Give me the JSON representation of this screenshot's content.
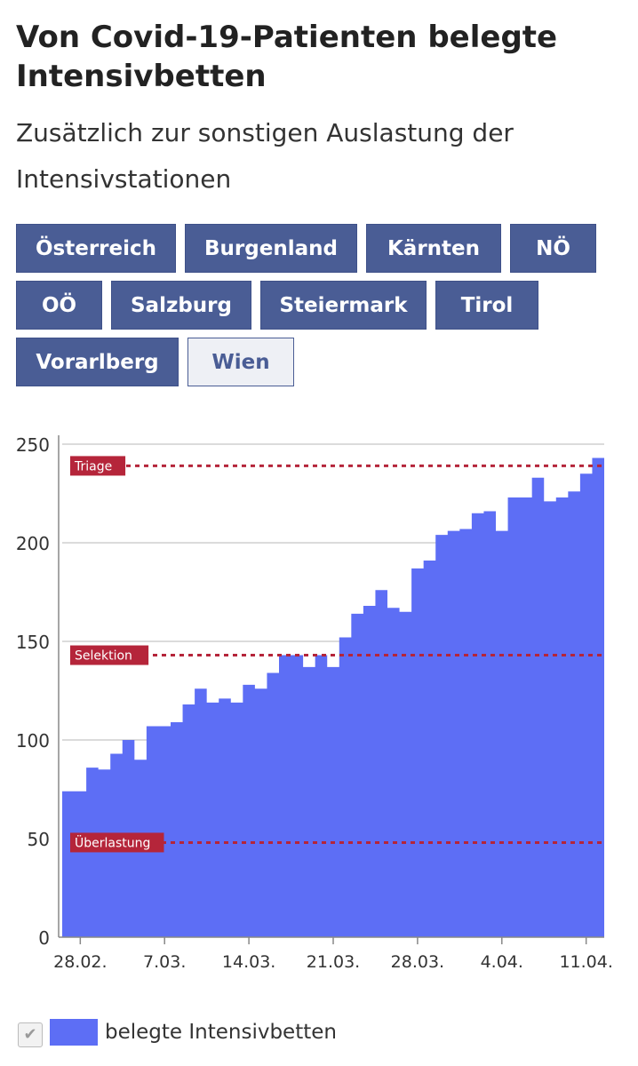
{
  "header": {
    "title": "Von Covid-19-Patienten belegte Intensivbetten",
    "subtitle": "Zusätzlich zur sonstigen Auslastung der Intensivstationen"
  },
  "tabs": [
    {
      "label": "Österreich",
      "active": false
    },
    {
      "label": "Burgenland",
      "active": false
    },
    {
      "label": "Kärnten",
      "active": false
    },
    {
      "label": "NÖ",
      "active": false
    },
    {
      "label": "OÖ",
      "active": false
    },
    {
      "label": "Salzburg",
      "active": false
    },
    {
      "label": "Steiermark",
      "active": false
    },
    {
      "label": "Tirol",
      "active": false
    },
    {
      "label": "Vorarlberg",
      "active": false
    },
    {
      "label": "Wien",
      "active": true
    }
  ],
  "legend": {
    "label": "belegte Intensivbetten",
    "checked": true
  },
  "colors": {
    "series": "#5d6ef5",
    "threshold": "#b5253a",
    "tab_bg": "#4a5d95"
  },
  "chart_data": {
    "type": "area",
    "step": true,
    "xlabel": "",
    "ylabel": "",
    "ylim": [
      0,
      250
    ],
    "yticks": [
      0,
      50,
      100,
      150,
      200,
      250
    ],
    "grid": "horizontal",
    "x_start": "2021-02-27",
    "xticks": [
      {
        "date": "2021-02-28",
        "label": "28.02."
      },
      {
        "date": "2021-03-07",
        "label": "7.03."
      },
      {
        "date": "2021-03-14",
        "label": "14.03."
      },
      {
        "date": "2021-03-21",
        "label": "21.03."
      },
      {
        "date": "2021-03-28",
        "label": "28.03."
      },
      {
        "date": "2021-04-04",
        "label": "4.04."
      },
      {
        "date": "2021-04-11",
        "label": "11.04."
      }
    ],
    "series": [
      {
        "name": "belegte Intensivbetten",
        "values": [
          74,
          74,
          86,
          85,
          93,
          100,
          90,
          107,
          107,
          109,
          118,
          126,
          119,
          121,
          119,
          128,
          126,
          134,
          143,
          143,
          137,
          143,
          137,
          152,
          164,
          168,
          176,
          167,
          165,
          187,
          191,
          204,
          206,
          207,
          215,
          216,
          206,
          223,
          223,
          233,
          221,
          223,
          226,
          235,
          243
        ]
      }
    ],
    "thresholds": [
      {
        "label": "Triage",
        "value": 239
      },
      {
        "label": "Selektion",
        "value": 143
      },
      {
        "label": "Überlastung",
        "value": 48
      }
    ]
  }
}
